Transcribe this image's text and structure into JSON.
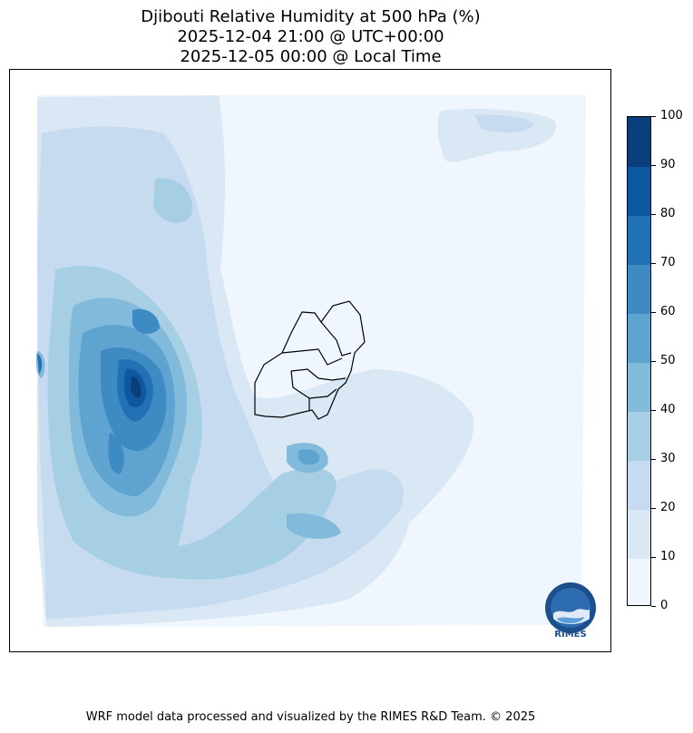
{
  "header": {
    "title_line1": "Djibouti Relative Humidity at 500 hPa (%)",
    "title_line2": "2025-12-04 21:00 @ UTC+00:00",
    "title_line3": "2025-12-05 00:00 @ Local Time"
  },
  "colorbar": {
    "levels": [
      "0",
      "10",
      "20",
      "30",
      "40",
      "50",
      "60",
      "70",
      "80",
      "90",
      "100"
    ],
    "colors": [
      "#f0f6fd",
      "#dae8f5",
      "#c6dbef",
      "#a7cfe4",
      "#82badb",
      "#5fa3d1",
      "#3e8bc4",
      "#2271b5",
      "#0e58a2",
      "#0a3f7c"
    ]
  },
  "logo": {
    "text": "RIMES",
    "icon": "rimes-logo-icon"
  },
  "footer": {
    "credit": "WRF model data processed and visualized by the RIMES R&D Team. © 2025"
  }
}
